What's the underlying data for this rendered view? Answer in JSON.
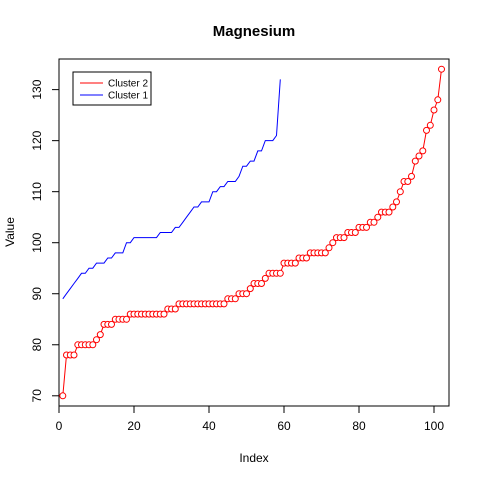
{
  "chart_data": {
    "type": "line",
    "title": "Magnesium",
    "xlabel": "Index",
    "ylabel": "Value",
    "xlim": [
      0,
      104
    ],
    "ylim": [
      68,
      136
    ],
    "x_ticks": [
      0,
      20,
      40,
      60,
      80,
      100
    ],
    "y_ticks": [
      70,
      80,
      90,
      100,
      110,
      120,
      130
    ],
    "legend_position": "top-left",
    "legend": [
      {
        "name": "Cluster 2",
        "color": "#ff0000"
      },
      {
        "name": "Cluster 1",
        "color": "#0000ff"
      }
    ],
    "series": [
      {
        "name": "Cluster 1",
        "style": "line",
        "color": "#0000ff",
        "x": [
          1,
          2,
          3,
          4,
          5,
          6,
          7,
          8,
          9,
          10,
          11,
          12,
          13,
          14,
          15,
          16,
          17,
          18,
          19,
          20,
          21,
          22,
          23,
          24,
          25,
          26,
          27,
          28,
          29,
          30,
          31,
          32,
          33,
          34,
          35,
          36,
          37,
          38,
          39,
          40,
          41,
          42,
          43,
          44,
          45,
          46,
          47,
          48,
          49,
          50,
          51,
          52,
          53,
          54,
          55,
          56,
          57,
          58,
          59
        ],
        "values": [
          89,
          90,
          91,
          92,
          93,
          94,
          94,
          95,
          95,
          96,
          96,
          96,
          97,
          97,
          98,
          98,
          98,
          100,
          100,
          101,
          101,
          101,
          101,
          101,
          101,
          101,
          102,
          102,
          102,
          102,
          103,
          103,
          104,
          105,
          106,
          107,
          107,
          108,
          108,
          108,
          110,
          110,
          111,
          111,
          112,
          112,
          112,
          113,
          115,
          115,
          116,
          116,
          118,
          118,
          120,
          120,
          120,
          121,
          132
        ]
      },
      {
        "name": "Cluster 2",
        "style": "line-points",
        "color": "#ff0000",
        "x": [
          1,
          2,
          3,
          4,
          5,
          6,
          7,
          8,
          9,
          10,
          11,
          12,
          13,
          14,
          15,
          16,
          17,
          18,
          19,
          20,
          21,
          22,
          23,
          24,
          25,
          26,
          27,
          28,
          29,
          30,
          31,
          32,
          33,
          34,
          35,
          36,
          37,
          38,
          39,
          40,
          41,
          42,
          43,
          44,
          45,
          46,
          47,
          48,
          49,
          50,
          51,
          52,
          53,
          54,
          55,
          56,
          57,
          58,
          59,
          60,
          61,
          62,
          63,
          64,
          65,
          66,
          67,
          68,
          69,
          70,
          71,
          72,
          73,
          74,
          75,
          76,
          77,
          78,
          79,
          80,
          81,
          82,
          83,
          84,
          85,
          86,
          87,
          88,
          89,
          90,
          91,
          92,
          93,
          94,
          95,
          96,
          97,
          98,
          99,
          100,
          101,
          102
        ],
        "values": [
          70,
          78,
          78,
          78,
          80,
          80,
          80,
          80,
          80,
          81,
          82,
          84,
          84,
          84,
          85,
          85,
          85,
          85,
          86,
          86,
          86,
          86,
          86,
          86,
          86,
          86,
          86,
          86,
          87,
          87,
          87,
          88,
          88,
          88,
          88,
          88,
          88,
          88,
          88,
          88,
          88,
          88,
          88,
          88,
          89,
          89,
          89,
          90,
          90,
          90,
          91,
          92,
          92,
          92,
          93,
          94,
          94,
          94,
          94,
          96,
          96,
          96,
          96,
          97,
          97,
          97,
          98,
          98,
          98,
          98,
          98,
          99,
          100,
          101,
          101,
          101,
          102,
          102,
          102,
          103,
          103,
          103,
          104,
          104,
          105,
          106,
          106,
          106,
          107,
          108,
          110,
          112,
          112,
          113,
          116,
          117,
          118,
          122,
          123,
          126,
          128,
          134
        ]
      }
    ]
  }
}
